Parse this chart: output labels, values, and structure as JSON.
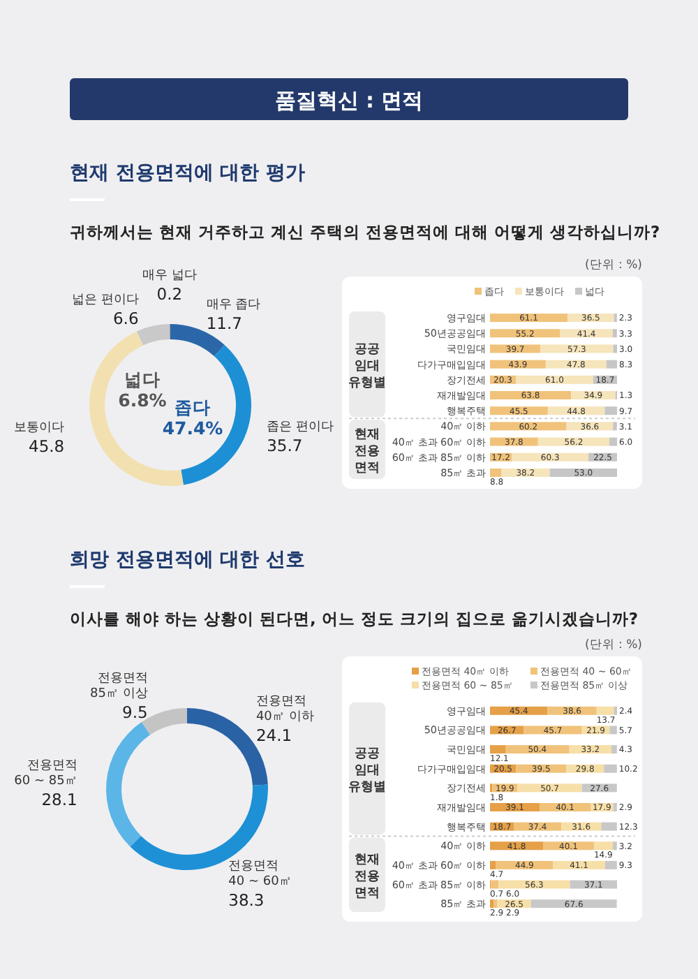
{
  "chart_data": [
    {
      "type": "donut",
      "title": "현재 전용면적에 대한 평가",
      "subtitle": "귀하께서는 현재 거주하고 계신 주택의 전용면적에 대해 어떻게 생각하십니까?",
      "annotations": [
        "품질혁신 : 면적",
        "넓다 6.8%",
        "좁다 47.4%"
      ],
      "categories": [
        "매우 좁다",
        "좁은 편이다",
        "보통이다",
        "넓은 편이다",
        "매우 넓다"
      ],
      "values": [
        11.7,
        35.7,
        45.8,
        6.6,
        0.2
      ],
      "colors": [
        "#2b67a8",
        "#1d8fd5",
        "#f3e0b0",
        "#c9c9c9",
        "#a9a9a9"
      ],
      "data_labels": true
    },
    {
      "type": "bar",
      "orientation": "horizontal",
      "stacked": true,
      "data_labels": true,
      "legend": "top",
      "annotations": [
        "(단위 : %)",
        "공공 임대 유형별",
        "현재 전용 면적"
      ],
      "categories": [
        "영구임대",
        "50년공공임대",
        "국민임대",
        "다가구매입임대",
        "장기전세",
        "재개발임대",
        "행복주택",
        "40㎡ 이하",
        "40㎡ 초과 60㎡ 이하",
        "60㎡ 초과 85㎡ 이하",
        "85㎡ 초과"
      ],
      "series": [
        {
          "name": "좁다",
          "color": "#f0c27a",
          "values": [
            61.1,
            55.2,
            39.7,
            43.9,
            20.3,
            63.8,
            45.5,
            60.2,
            37.8,
            17.2,
            8.8
          ]
        },
        {
          "name": "보통이다",
          "color": "#f6e4bb",
          "values": [
            36.5,
            41.4,
            57.3,
            47.8,
            61.0,
            34.9,
            44.8,
            36.6,
            56.2,
            60.3,
            38.2
          ],
          "value_labels": [
            "36.5",
            "41.4",
            "57.3",
            "47.8",
            "61.0",
            "34.9",
            "44.8",
            "36.6",
            "56.2",
            "60.3",
            "38.2"
          ]
        },
        {
          "name": "넓다",
          "color": "#c6c6c6",
          "values": [
            2.3,
            3.3,
            3.0,
            8.3,
            18.7,
            1.3,
            9.7,
            3.1,
            6.0,
            22.5,
            53.0
          ],
          "value_labels": [
            "2.3",
            "3.3",
            "3.0",
            "8.3",
            "18.7",
            "1.3",
            "9.7",
            "3.1",
            "6.0",
            "22.5",
            "53.0"
          ]
        }
      ]
    },
    {
      "type": "donut",
      "title": "희망 전용면적에 대한 선호",
      "subtitle": "이사를 해야 하는 상황이 된다면, 어느 정도 크기의 집으로 옮기시겠습니까?",
      "categories": [
        "전용면적 40㎡ 이하",
        "전용면적 40 ~ 60㎡",
        "전용면적 60 ~ 85㎡",
        "전용면적 85㎡ 이상"
      ],
      "values": [
        24.1,
        38.3,
        28.1,
        9.5
      ],
      "colors": [
        "#2a62a6",
        "#1e90d6",
        "#5bb5e6",
        "#c4c4c4"
      ],
      "data_labels": true
    },
    {
      "type": "bar",
      "orientation": "horizontal",
      "stacked": true,
      "data_labels": true,
      "legend": "top",
      "annotations": [
        "(단위 : %)",
        "공공 임대 유형별",
        "현재 전용 면적"
      ],
      "categories": [
        "영구임대",
        "50년공공임대",
        "국민임대",
        "다가구매입임대",
        "장기전세",
        "재개발임대",
        "행복주택",
        "40㎡ 이하",
        "40㎡ 초과 60㎡ 이하",
        "60㎡ 초과 85㎡ 이하",
        "85㎡ 초과"
      ],
      "series": [
        {
          "name": "전용면적 40㎡ 이하",
          "color": "#e5a048",
          "values": [
            45.4,
            26.7,
            12.1,
            20.5,
            1.8,
            39.1,
            18.7,
            41.8,
            4.7,
            0.7,
            2.9
          ]
        },
        {
          "name": "전용면적 40 ~ 60㎡",
          "color": "#f0c27a",
          "values": [
            38.6,
            45.7,
            50.4,
            39.5,
            19.9,
            40.1,
            37.4,
            40.1,
            44.9,
            6.0,
            2.9
          ],
          "value_labels": [
            "38.6",
            "45.7",
            "50.4",
            "39.5",
            "19.9",
            "40.1",
            "37.4",
            "40.1",
            "44.9",
            "6.0",
            "2.9"
          ]
        },
        {
          "name": "전용면적 60 ~ 85㎡",
          "color": "#f7dfa8",
          "values": [
            13.7,
            21.9,
            33.2,
            29.8,
            50.7,
            17.9,
            31.6,
            14.9,
            41.1,
            56.3,
            26.5
          ]
        },
        {
          "name": "전용면적 85㎡ 이상",
          "color": "#c8c8c8",
          "values": [
            2.4,
            5.7,
            4.3,
            10.2,
            27.6,
            2.9,
            12.3,
            3.2,
            9.3,
            37.1,
            67.6
          ]
        }
      ]
    }
  ]
}
